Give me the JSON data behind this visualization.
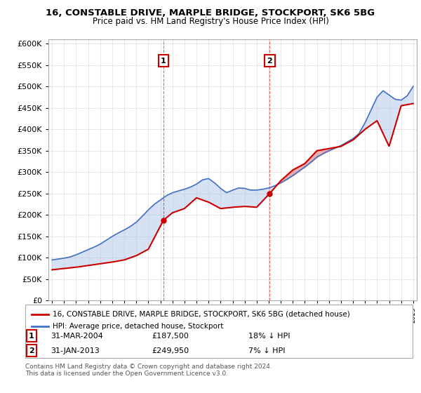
{
  "title_line1": "16, CONSTABLE DRIVE, MARPLE BRIDGE, STOCKPORT, SK6 5BG",
  "title_line2": "Price paid vs. HM Land Registry's House Price Index (HPI)",
  "legend_line1": "16, CONSTABLE DRIVE, MARPLE BRIDGE, STOCKPORT, SK6 5BG (detached house)",
  "legend_line2": "HPI: Average price, detached house, Stockport",
  "footer": "Contains HM Land Registry data © Crown copyright and database right 2024.\nThis data is licensed under the Open Government Licence v3.0.",
  "ann1_date": "31-MAR-2004",
  "ann1_price": "£187,500",
  "ann1_hpi": "18% ↓ HPI",
  "ann2_date": "31-JAN-2013",
  "ann2_price": "£249,950",
  "ann2_hpi": "7% ↓ HPI",
  "hpi_color": "#4472C4",
  "hpi_fill_color": "#AEC6E8",
  "sale_color": "#CC0000",
  "point1_x": 2004.25,
  "point1_y": 187500,
  "point2_x": 2013.08,
  "point2_y": 249950,
  "ylim": [
    0,
    610000
  ],
  "xlim": [
    1994.7,
    2025.3
  ],
  "hpi_years": [
    1995,
    1995.5,
    1996,
    1996.5,
    1997,
    1997.5,
    1998,
    1998.5,
    1999,
    1999.5,
    2000,
    2000.5,
    2001,
    2001.5,
    2002,
    2002.5,
    2003,
    2003.5,
    2004,
    2004.5,
    2005,
    2005.5,
    2006,
    2006.5,
    2007,
    2007.5,
    2008,
    2008.5,
    2009,
    2009.5,
    2010,
    2010.5,
    2011,
    2011.5,
    2012,
    2012.5,
    2013,
    2013.5,
    2014,
    2014.5,
    2015,
    2015.5,
    2016,
    2016.5,
    2017,
    2017.5,
    2018,
    2018.5,
    2019,
    2019.5,
    2020,
    2020.5,
    2021,
    2021.5,
    2022,
    2022.5,
    2023,
    2023.5,
    2024,
    2024.5,
    2025
  ],
  "hpi_vals": [
    95000,
    97000,
    99000,
    102000,
    107000,
    113000,
    119000,
    125000,
    132000,
    141000,
    150000,
    158000,
    165000,
    173000,
    183000,
    197000,
    212000,
    225000,
    235000,
    245000,
    252000,
    256000,
    260000,
    265000,
    272000,
    282000,
    285000,
    275000,
    262000,
    252000,
    258000,
    263000,
    262000,
    258000,
    258000,
    260000,
    263000,
    268000,
    275000,
    283000,
    292000,
    302000,
    312000,
    323000,
    335000,
    343000,
    350000,
    356000,
    362000,
    370000,
    378000,
    390000,
    415000,
    445000,
    475000,
    490000,
    480000,
    470000,
    468000,
    478000,
    500000
  ],
  "sale_years": [
    1995,
    1996,
    1997,
    1998,
    1999,
    2000,
    2001,
    2002,
    2003,
    2004.25,
    2005,
    2006,
    2007,
    2008,
    2009,
    2010,
    2011,
    2012,
    2013.08,
    2014,
    2015,
    2016,
    2017,
    2018,
    2019,
    2020,
    2021,
    2022,
    2023,
    2024,
    2025
  ],
  "sale_vals": [
    72000,
    75000,
    78000,
    82000,
    86000,
    90000,
    95000,
    105000,
    120000,
    187500,
    205000,
    215000,
    240000,
    230000,
    215000,
    218000,
    220000,
    218000,
    249950,
    280000,
    305000,
    320000,
    350000,
    355000,
    360000,
    375000,
    400000,
    420000,
    360000,
    455000,
    460000
  ]
}
